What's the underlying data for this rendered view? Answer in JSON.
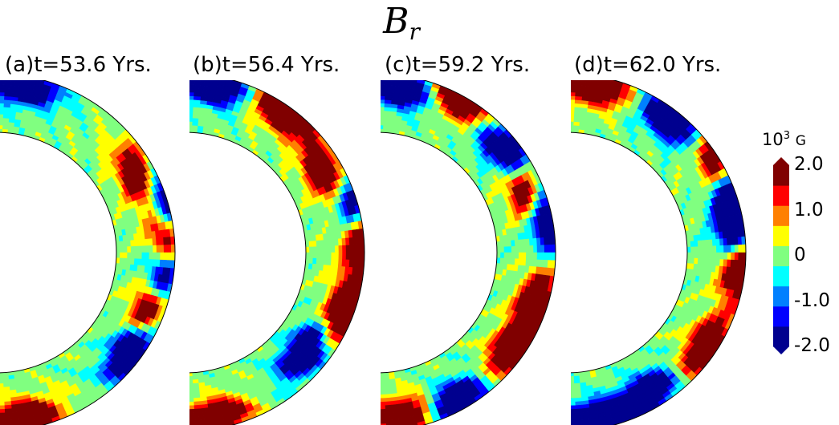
{
  "title": {
    "main": "B",
    "sub": "r"
  },
  "panels": [
    {
      "label": "(a)",
      "time": "t=53.6 Yrs."
    },
    {
      "label": "(b)",
      "time": "t=56.4 Yrs."
    },
    {
      "label": "(c)",
      "time": "t=59.2 Yrs."
    },
    {
      "label": "(d)",
      "time": "t=62.0 Yrs."
    }
  ],
  "colorbar": {
    "unit_base": "10",
    "unit_exp": "3",
    "unit_g": "G",
    "ticks": [
      "2.0",
      "1.0",
      "0",
      "-1.0",
      "-2.0"
    ],
    "tick_values": [
      2.0,
      1.0,
      0,
      -1.0,
      -2.0
    ],
    "range": [
      -2.0,
      2.0
    ],
    "extend": "both",
    "colors": [
      "#00008f",
      "#0000ff",
      "#0080ff",
      "#00ffff",
      "#80ff80",
      "#ffff00",
      "#ff8000",
      "#ff0000",
      "#800000"
    ]
  },
  "chart_data": {
    "type": "heatmap",
    "title": "B_r",
    "colormap": "jet",
    "colorbar_label": "10^3 G",
    "vmin": -2.0,
    "vmax": 2.0,
    "panels": [
      {
        "label": "(a)",
        "t_years": 53.6,
        "blobs": [
          {
            "theta": -80,
            "r": 0.82,
            "sign": -1
          },
          {
            "theta": -28,
            "r": 0.7,
            "sign": 1
          },
          {
            "theta": -17,
            "r": 0.93,
            "sign": -1
          },
          {
            "theta": -5,
            "r": 0.85,
            "sign": 1
          },
          {
            "theta": 8,
            "r": 0.82,
            "sign": -1
          },
          {
            "theta": 20,
            "r": 0.73,
            "sign": 1
          },
          {
            "theta": 36,
            "r": 0.78,
            "sign": -1
          },
          {
            "theta": 80,
            "r": 0.82,
            "sign": 1
          }
        ]
      },
      {
        "label": "(b)",
        "t_years": 56.4,
        "blobs": [
          {
            "theta": -80,
            "r": 0.82,
            "sign": -1
          },
          {
            "theta": -55,
            "r": 0.85,
            "sign": 1
          },
          {
            "theta": -30,
            "r": 0.68,
            "sign": 1
          },
          {
            "theta": -15,
            "r": 0.88,
            "sign": -1
          },
          {
            "theta": -5,
            "r": 0.9,
            "sign": 1
          },
          {
            "theta": 20,
            "r": 0.82,
            "sign": 1
          },
          {
            "theta": 40,
            "r": 0.6,
            "sign": -1
          },
          {
            "theta": 80,
            "r": 0.82,
            "sign": 1
          }
        ]
      },
      {
        "label": "(c)",
        "t_years": 59.2,
        "blobs": [
          {
            "theta": -80,
            "r": 0.78,
            "sign": -1
          },
          {
            "theta": -62,
            "r": 0.9,
            "sign": 1
          },
          {
            "theta": -38,
            "r": 0.75,
            "sign": -1
          },
          {
            "theta": -22,
            "r": 0.7,
            "sign": 1
          },
          {
            "theta": -12,
            "r": 0.88,
            "sign": -1
          },
          {
            "theta": 18,
            "r": 0.8,
            "sign": 1
          },
          {
            "theta": 35,
            "r": 0.75,
            "sign": 1
          },
          {
            "theta": 62,
            "r": 0.8,
            "sign": -1
          },
          {
            "theta": 80,
            "r": 0.78,
            "sign": 1
          }
        ]
      },
      {
        "label": "(d)",
        "t_years": 62.0,
        "blobs": [
          {
            "theta": -80,
            "r": 0.82,
            "sign": 1
          },
          {
            "theta": -52,
            "r": 0.8,
            "sign": -1
          },
          {
            "theta": -30,
            "r": 0.92,
            "sign": 1
          },
          {
            "theta": -20,
            "r": 0.95,
            "sign": -1
          },
          {
            "theta": -8,
            "r": 0.8,
            "sign": -1
          },
          {
            "theta": 5,
            "r": 0.88,
            "sign": 1
          },
          {
            "theta": 35,
            "r": 0.82,
            "sign": 1
          },
          {
            "theta": 60,
            "r": 0.72,
            "sign": -1
          },
          {
            "theta": 80,
            "r": 0.82,
            "sign": -1
          }
        ]
      }
    ]
  }
}
